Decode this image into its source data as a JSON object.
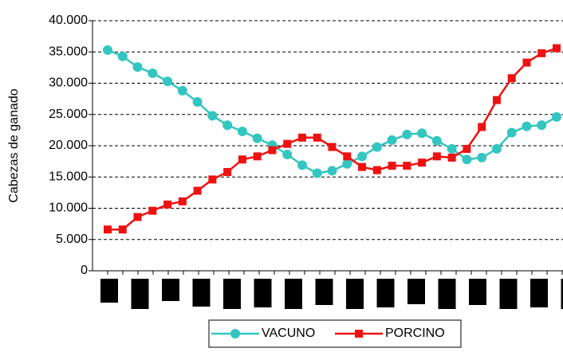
{
  "chart_data": {
    "type": "line",
    "y_label": "Cabezas de ganado",
    "categories": [
      null,
      null,
      null,
      null,
      null,
      null,
      null,
      null,
      null,
      null,
      null,
      null,
      null,
      null,
      null,
      null,
      null,
      null,
      null,
      null,
      null,
      null,
      null,
      null,
      null,
      null,
      null,
      null,
      null,
      null,
      null
    ],
    "ylim": [
      0,
      40000
    ],
    "yticks": [
      0,
      {
        "value": 5000,
        "label": "5.000"
      },
      {
        "value": 10000,
        "label": "10.000"
      },
      {
        "value": 15000,
        "label": "15.000"
      },
      {
        "value": 20000,
        "label": "20.000"
      },
      {
        "value": 25000,
        "label": "25.000"
      },
      {
        "value": 30000,
        "label": "30.000"
      },
      {
        "value": 35000,
        "label": "35.000"
      },
      {
        "value": 40000,
        "label": "40.000"
      }
    ],
    "grid": true,
    "series": [
      {
        "name": "VACUNO",
        "color": "#33c6c0",
        "marker": "circle",
        "values": [
          35300,
          34300,
          32600,
          31600,
          30300,
          28800,
          27000,
          24800,
          23300,
          22300,
          21200,
          20100,
          18600,
          16900,
          15600,
          16000,
          17100,
          18300,
          19800,
          20900,
          21800,
          22000,
          20800,
          19500,
          17800,
          18100,
          19500,
          22100,
          23100,
          23300,
          24600
        ]
      },
      {
        "name": "PORCINO",
        "color": "#ee1111",
        "marker": "square",
        "values": [
          6600,
          6600,
          8600,
          9600,
          10600,
          11100,
          12800,
          14600,
          15800,
          17800,
          18300,
          19300,
          20300,
          21300,
          21300,
          19800,
          18300,
          16600,
          16100,
          16800,
          16800,
          17300,
          18300,
          18100,
          19500,
          23000,
          27300,
          30800,
          33300,
          34800,
          35600
        ]
      }
    ]
  }
}
